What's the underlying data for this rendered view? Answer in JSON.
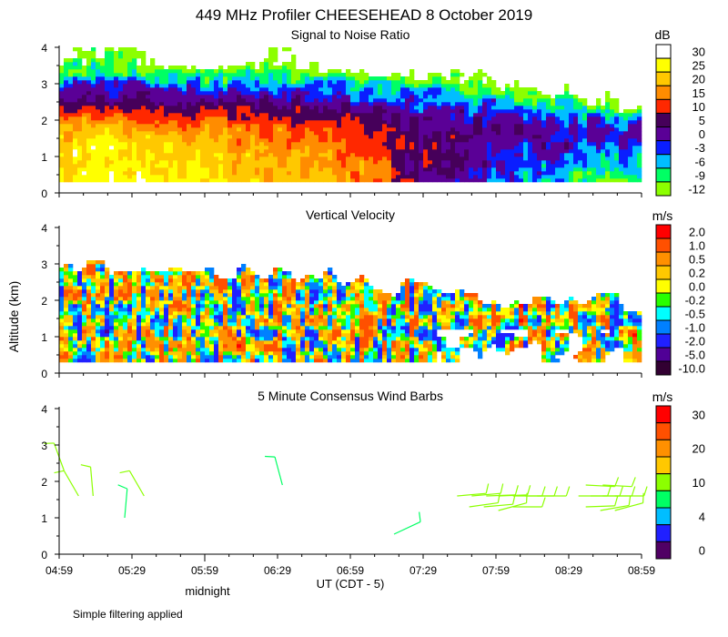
{
  "title": "449 MHz Profiler CHEESEHEAD  8 October 2019",
  "ylabel": "Altitude (km)",
  "xlabel": "UT  (CDT - 5)",
  "midnight_label": "midnight",
  "footnote": "Simple filtering applied",
  "x_ticks": [
    "04:59",
    "05:29",
    "05:59",
    "06:29",
    "06:59",
    "07:29",
    "07:59",
    "08:29",
    "08:59"
  ],
  "y_ticks": [
    "0",
    "1",
    "2",
    "3",
    "4"
  ],
  "chart_data": [
    {
      "type": "heatmap",
      "title": "Signal to Noise Ratio",
      "unit": "dB",
      "xlim": [
        "04:59",
        "08:59"
      ],
      "ylim": [
        0,
        4
      ],
      "levels": [
        {
          "label": "30",
          "min": 30,
          "color": "#ffffff"
        },
        {
          "label": "25",
          "min": 25,
          "color": "#ffff00"
        },
        {
          "label": "20",
          "min": 20,
          "color": "#ffc800"
        },
        {
          "label": "15",
          "min": 15,
          "color": "#ff8c00"
        },
        {
          "label": "10",
          "min": 10,
          "color": "#ff2800"
        },
        {
          "label": "5",
          "min": 5,
          "color": "#46005a"
        },
        {
          "label": "0",
          "min": 0,
          "color": "#5a0096"
        },
        {
          "label": "-3",
          "min": -3,
          "color": "#0a1eff"
        },
        {
          "label": "-6",
          "min": -6,
          "color": "#00beff"
        },
        {
          "label": "-9",
          "min": -9,
          "color": "#00ff64"
        },
        {
          "label": "-12",
          "min": -12,
          "color": "#8cff00"
        }
      ],
      "grid_times": [
        "04:59",
        "05:29",
        "05:59",
        "06:29",
        "06:59",
        "07:29",
        "07:59",
        "08:29",
        "08:59"
      ],
      "grid_altitudes_km": [
        0.25,
        0.75,
        1.25,
        1.75,
        2.25,
        2.75,
        3.25,
        3.75
      ],
      "values": [
        [
          28,
          28,
          25,
          22,
          20,
          6,
          -3,
          -6,
          -9
        ],
        [
          27,
          26,
          25,
          22,
          18,
          8,
          0,
          -3,
          -6
        ],
        [
          25,
          25,
          22,
          20,
          15,
          8,
          2,
          0,
          -3
        ],
        [
          20,
          20,
          18,
          15,
          12,
          5,
          5,
          3,
          0
        ],
        [
          12,
          10,
          9,
          8,
          5,
          2,
          0,
          -3,
          -9
        ],
        [
          3,
          2,
          0,
          0,
          -3,
          -3,
          -9,
          -12,
          null
        ],
        [
          -6,
          -6,
          -9,
          -9,
          -9,
          -12,
          -12,
          null,
          null
        ],
        [
          -12,
          -12,
          null,
          -12,
          null,
          null,
          null,
          null,
          null
        ]
      ]
    },
    {
      "type": "heatmap",
      "title": "Vertical Velocity",
      "unit": "m/s",
      "xlim": [
        "04:59",
        "08:59"
      ],
      "ylim": [
        0,
        4
      ],
      "levels": [
        {
          "label": "2.0",
          "min": 2.0,
          "color": "#ff0000"
        },
        {
          "label": "1.0",
          "min": 1.0,
          "color": "#ff5000"
        },
        {
          "label": "0.5",
          "min": 0.5,
          "color": "#ff9000"
        },
        {
          "label": "0.2",
          "min": 0.2,
          "color": "#ffc800"
        },
        {
          "label": "0.0",
          "min": 0.0,
          "color": "#ffff00"
        },
        {
          "label": "-0.2",
          "min": -0.2,
          "color": "#28ff00"
        },
        {
          "label": "-0.5",
          "min": -0.5,
          "color": "#00ffff"
        },
        {
          "label": "-1.0",
          "min": -1.0,
          "color": "#0080ff"
        },
        {
          "label": "-2.0",
          "min": -2.0,
          "color": "#2020ff"
        },
        {
          "label": "-5.0",
          "min": -5.0,
          "color": "#500096"
        },
        {
          "label": "-10.0",
          "min": -10.0,
          "color": "#320032"
        }
      ],
      "grid_times": [
        "04:59",
        "05:29",
        "05:59",
        "06:29",
        "06:59",
        "07:29",
        "07:59",
        "08:29",
        "08:59"
      ],
      "echo_top_km": [
        2.9,
        3.0,
        2.8,
        2.8,
        2.6,
        2.3,
        2.1,
        2.0,
        1.9
      ]
    },
    {
      "type": "scatter",
      "title": "5 Minute Consensus Wind Barbs",
      "unit": "m/s",
      "xlim": [
        "04:59",
        "08:59"
      ],
      "ylim": [
        0,
        4
      ],
      "color_boxes": [
        "#ff0000",
        "#ff5000",
        "#ff9000",
        "#ffc800",
        "#8cff00",
        "#00ff64",
        "#00beff",
        "#2020ff",
        "#500064"
      ],
      "color_labels": [
        {
          "label": "30",
          "box": 0
        },
        {
          "label": "20",
          "box": 2
        },
        {
          "label": "10",
          "box": 4
        },
        {
          "label": "4",
          "box": 6
        },
        {
          "label": "0",
          "box": 8
        }
      ],
      "barbs": [
        {
          "time": "05:01",
          "alt": 2.3,
          "speed": 10,
          "dir": 340
        },
        {
          "time": "05:07",
          "alt": 1.6,
          "speed": 10,
          "dir": 330
        },
        {
          "time": "05:13",
          "alt": 1.6,
          "speed": 10,
          "dir": 355
        },
        {
          "time": "05:26",
          "alt": 1.0,
          "speed": 8,
          "dir": 5
        },
        {
          "time": "05:34",
          "alt": 1.6,
          "speed": 10,
          "dir": 330
        },
        {
          "time": "06:31",
          "alt": 1.9,
          "speed": 8,
          "dir": 345
        },
        {
          "time": "07:17",
          "alt": 0.55,
          "speed": 8,
          "dir": 65
        },
        {
          "time": "07:43",
          "alt": 1.6,
          "speed": 10,
          "dir": 85
        },
        {
          "time": "07:49",
          "alt": 1.6,
          "speed": 10,
          "dir": 85
        },
        {
          "time": "07:55",
          "alt": 1.6,
          "speed": 10,
          "dir": 88
        },
        {
          "time": "08:00",
          "alt": 1.6,
          "speed": 10,
          "dir": 88
        },
        {
          "time": "08:06",
          "alt": 1.6,
          "speed": 10,
          "dir": 90
        },
        {
          "time": "08:11",
          "alt": 1.6,
          "speed": 10,
          "dir": 90
        },
        {
          "time": "08:16",
          "alt": 1.6,
          "speed": 10,
          "dir": 90
        },
        {
          "time": "07:48",
          "alt": 1.3,
          "speed": 10,
          "dir": 82
        },
        {
          "time": "07:54",
          "alt": 1.3,
          "speed": 10,
          "dir": 85
        },
        {
          "time": "08:00",
          "alt": 1.2,
          "speed": 10,
          "dir": 75
        },
        {
          "time": "08:06",
          "alt": 1.3,
          "speed": 10,
          "dir": 90
        },
        {
          "time": "08:36",
          "alt": 1.9,
          "speed": 10,
          "dir": 93
        },
        {
          "time": "08:43",
          "alt": 1.9,
          "speed": 10,
          "dir": 93
        },
        {
          "time": "08:33",
          "alt": 1.6,
          "speed": 10,
          "dir": 90
        },
        {
          "time": "08:38",
          "alt": 1.6,
          "speed": 10,
          "dir": 90
        },
        {
          "time": "08:43",
          "alt": 1.6,
          "speed": 10,
          "dir": 90
        },
        {
          "time": "08:48",
          "alt": 1.6,
          "speed": 10,
          "dir": 90
        },
        {
          "time": "08:36",
          "alt": 1.3,
          "speed": 10,
          "dir": 88
        },
        {
          "time": "08:42",
          "alt": 1.2,
          "speed": 10,
          "dir": 80
        },
        {
          "time": "08:48",
          "alt": 1.2,
          "speed": 10,
          "dir": 75
        }
      ]
    }
  ]
}
